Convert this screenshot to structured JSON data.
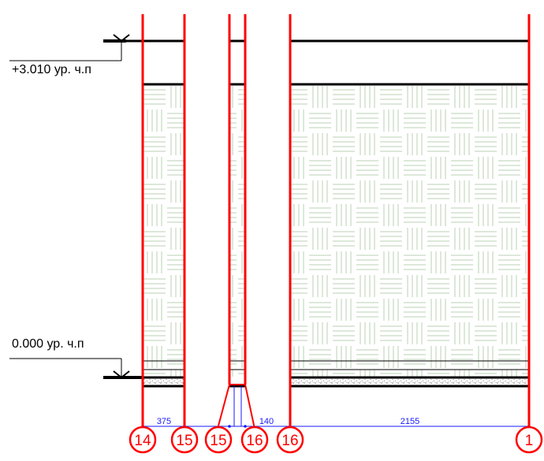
{
  "levels": [
    {
      "label": "+3.010 ур. ч.п"
    },
    {
      "label": "0.000 ур. ч.п"
    }
  ],
  "dimensions": [
    {
      "value": "375"
    },
    {
      "value": "140"
    },
    {
      "value": "2155"
    }
  ],
  "axis_markers": [
    {
      "label": "14"
    },
    {
      "label": "15"
    },
    {
      "label": "15"
    },
    {
      "label": "16"
    },
    {
      "label": "16"
    },
    {
      "label": "1"
    }
  ],
  "colors": {
    "axis_line": "#ff0000",
    "dimension": "#1a1aff",
    "tile_hatch": "#b8d2b3",
    "slab": "#000000"
  }
}
